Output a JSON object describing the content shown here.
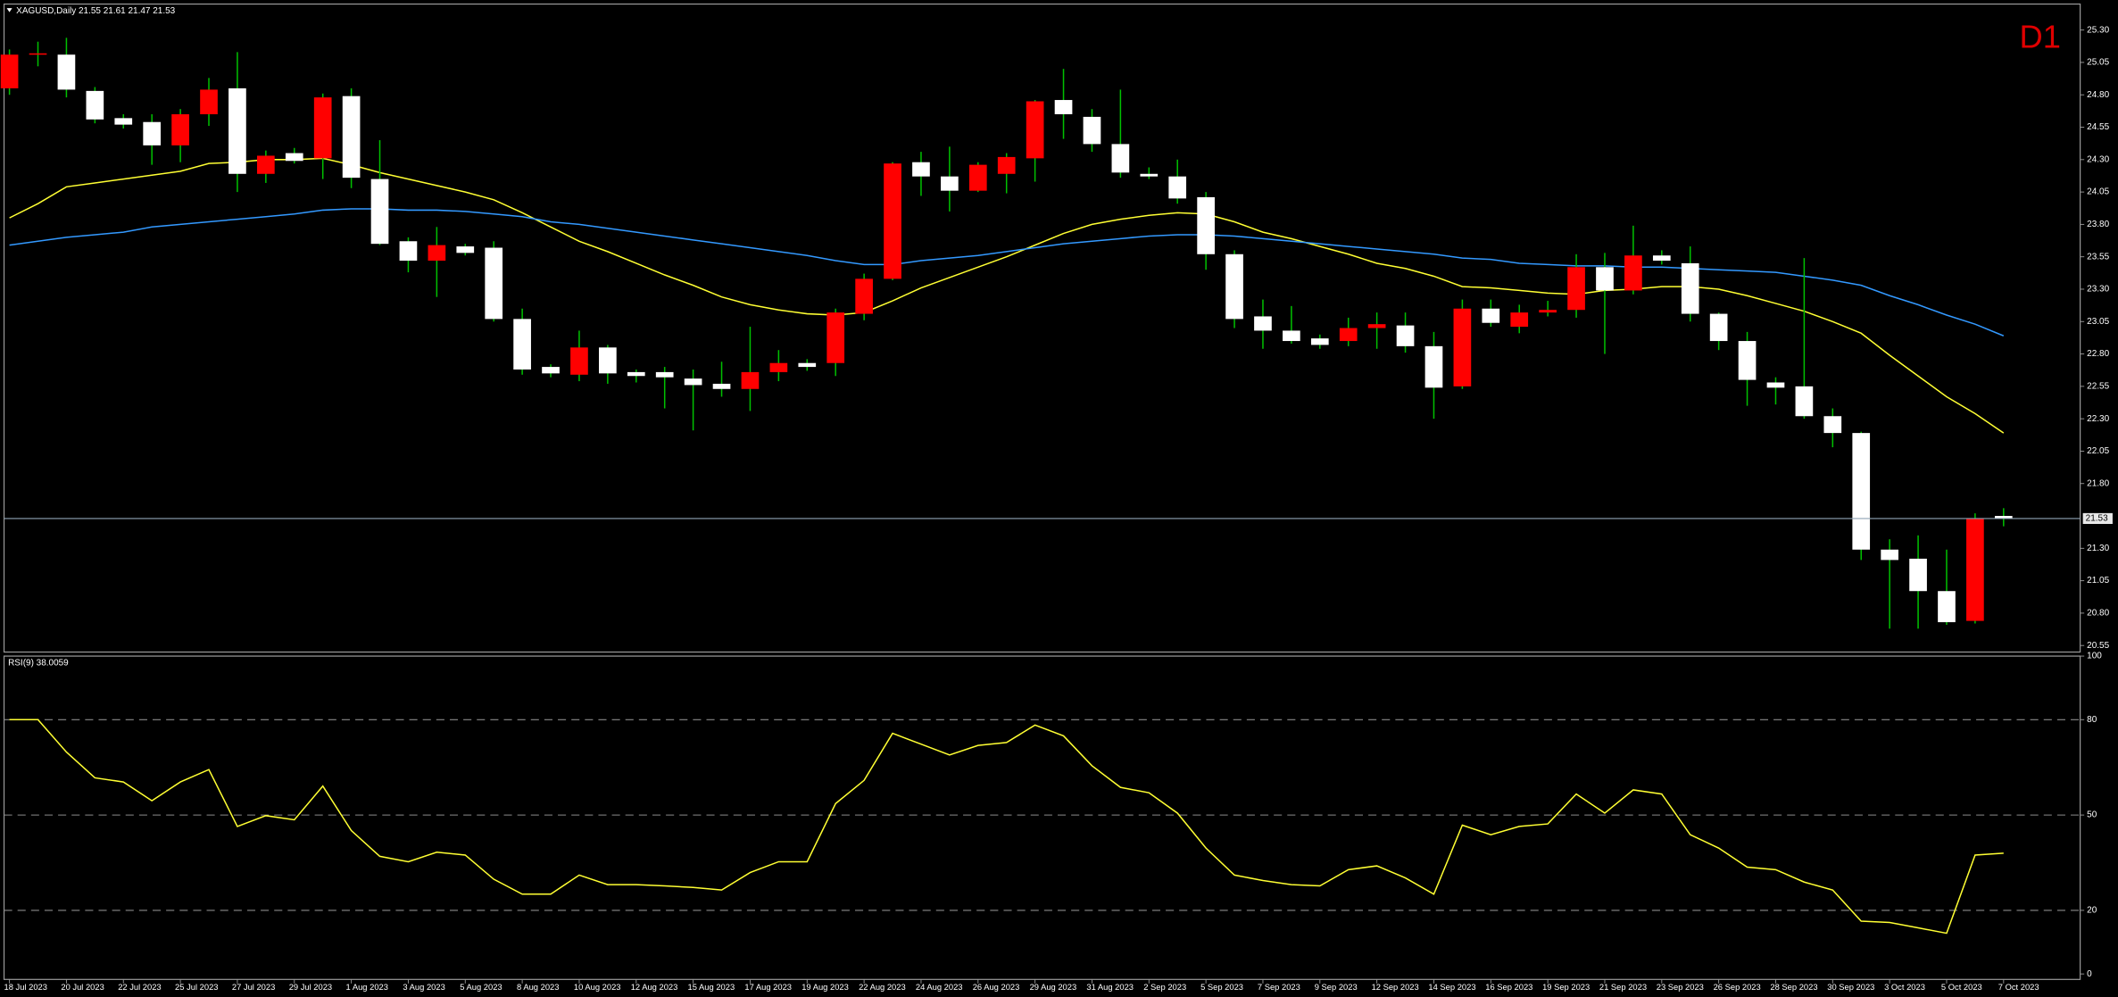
{
  "chart_data": [
    {
      "type": "candlestick",
      "title": "XAGUSD,Daily  21.55 21.61 21.47 21.53",
      "corner_label": "D1",
      "categories": [
        "18 Jul 2023",
        null,
        "20 Jul 2023",
        null,
        "22 Jul 2023",
        null,
        "25 Jul 2023",
        null,
        "27 Jul 2023",
        null,
        "29 Jul 2023",
        null,
        "1 Aug 2023",
        null,
        "3 Aug 2023",
        null,
        "5 Aug 2023",
        null,
        "8 Aug 2023",
        null,
        "10 Aug 2023",
        null,
        "12 Aug 2023",
        null,
        "15 Aug 2023",
        null,
        "17 Aug 2023",
        null,
        "19 Aug 2023",
        null,
        "22 Aug 2023",
        null,
        "24 Aug 2023",
        null,
        "26 Aug 2023",
        null,
        "29 Aug 2023",
        null,
        "31 Aug 2023",
        null,
        "2 Sep 2023",
        null,
        "5 Sep 2023",
        null,
        "7 Sep 2023",
        null,
        "9 Sep 2023",
        null,
        "12 Sep 2023",
        null,
        "14 Sep 2023",
        null,
        "16 Sep 2023",
        null,
        "19 Sep 2023",
        null,
        "21 Sep 2023",
        null,
        "23 Sep 2023",
        null,
        "26 Sep 2023",
        null,
        "28 Sep 2023",
        null,
        "30 Sep 2023",
        null,
        "3 Oct 2023",
        null,
        "5 Oct 2023",
        null,
        "7 Oct 2023"
      ],
      "open": [
        24.85,
        25.11,
        25.11,
        24.83,
        24.62,
        24.59,
        24.41,
        24.65,
        24.85,
        24.19,
        24.35,
        24.31,
        24.79,
        24.15,
        23.67,
        23.52,
        23.63,
        23.62,
        23.07,
        22.7,
        22.64,
        22.85,
        22.66,
        22.66,
        22.61,
        22.57,
        22.53,
        22.66,
        22.73,
        22.73,
        23.11,
        23.38,
        24.28,
        24.17,
        24.06,
        24.19,
        24.31,
        24.76,
        24.63,
        24.42,
        24.19,
        24.17,
        24.01,
        23.57,
        23.09,
        22.98,
        22.92,
        22.9,
        23.0,
        23.02,
        22.86,
        22.55,
        23.15,
        23.01,
        23.12,
        23.14,
        23.47,
        23.29,
        23.56,
        23.5,
        23.11,
        22.9,
        22.58,
        22.55,
        22.32,
        22.19,
        21.29,
        21.22,
        20.97,
        20.74,
        21.55
      ],
      "high": [
        25.15,
        25.21,
        25.24,
        24.86,
        24.65,
        24.65,
        24.69,
        24.93,
        25.13,
        24.37,
        24.39,
        24.81,
        24.85,
        24.45,
        23.7,
        23.78,
        23.65,
        23.67,
        23.15,
        22.72,
        22.98,
        22.87,
        22.68,
        22.7,
        22.68,
        22.74,
        23.01,
        22.83,
        22.76,
        23.15,
        23.42,
        24.28,
        24.36,
        24.4,
        24.28,
        24.35,
        24.76,
        25.0,
        24.69,
        24.84,
        24.24,
        24.3,
        24.05,
        23.6,
        23.22,
        23.17,
        22.95,
        23.08,
        23.12,
        23.12,
        22.97,
        23.22,
        23.22,
        23.18,
        23.21,
        23.57,
        23.58,
        23.79,
        23.6,
        23.63,
        23.12,
        22.97,
        22.62,
        23.54,
        22.38,
        22.2,
        21.37,
        21.4,
        21.29,
        21.57,
        21.61
      ],
      "low": [
        24.8,
        25.02,
        24.78,
        24.58,
        24.54,
        24.26,
        24.28,
        24.56,
        24.05,
        24.12,
        24.27,
        24.15,
        24.08,
        23.64,
        23.43,
        23.24,
        23.56,
        23.05,
        22.64,
        22.62,
        22.59,
        22.57,
        22.58,
        22.38,
        22.21,
        22.47,
        22.36,
        22.59,
        22.67,
        22.63,
        23.06,
        23.37,
        24.02,
        23.9,
        24.05,
        24.04,
        24.13,
        24.46,
        24.36,
        24.16,
        24.15,
        23.96,
        23.45,
        23.0,
        22.84,
        22.88,
        22.84,
        22.86,
        22.84,
        22.81,
        22.3,
        22.53,
        23.01,
        22.96,
        23.09,
        23.08,
        22.8,
        23.26,
        23.49,
        23.05,
        22.83,
        22.4,
        22.41,
        22.3,
        22.08,
        21.21,
        20.68,
        20.68,
        20.71,
        20.72,
        21.47
      ],
      "close": [
        25.11,
        25.12,
        24.84,
        24.61,
        24.57,
        24.41,
        24.65,
        24.84,
        24.19,
        24.33,
        24.29,
        24.78,
        24.16,
        23.65,
        23.52,
        23.64,
        23.58,
        23.07,
        22.68,
        22.65,
        22.85,
        22.65,
        22.63,
        22.62,
        22.56,
        22.53,
        22.66,
        22.73,
        22.7,
        23.12,
        23.38,
        24.27,
        24.17,
        24.06,
        24.26,
        24.32,
        24.75,
        24.65,
        24.42,
        24.2,
        24.17,
        24.0,
        23.57,
        23.07,
        22.98,
        22.9,
        22.87,
        23.0,
        23.03,
        22.86,
        22.54,
        23.15,
        23.04,
        23.12,
        23.14,
        23.47,
        23.29,
        23.56,
        23.52,
        23.11,
        22.9,
        22.6,
        22.54,
        22.32,
        22.19,
        21.29,
        21.21,
        20.97,
        20.73,
        21.53,
        21.53
      ],
      "up_color": "#ff0000",
      "down_color": "#ffffff",
      "wick_color": "#00c000",
      "series": [
        {
          "color": "#ffff33",
          "values": [
            23.85,
            23.96,
            24.09,
            24.12,
            24.15,
            24.18,
            24.21,
            24.27,
            24.28,
            24.3,
            24.3,
            24.31,
            24.26,
            24.2,
            24.15,
            24.1,
            24.05,
            23.99,
            23.89,
            23.78,
            23.67,
            23.59,
            23.5,
            23.41,
            23.33,
            23.24,
            23.18,
            23.14,
            23.11,
            23.1,
            23.12,
            23.21,
            23.31,
            23.39,
            23.47,
            23.55,
            23.64,
            23.73,
            23.8,
            23.84,
            23.87,
            23.89,
            23.88,
            23.82,
            23.74,
            23.69,
            23.63,
            23.57,
            23.5,
            23.46,
            23.4,
            23.32,
            23.31,
            23.29,
            23.27,
            23.26,
            23.29,
            23.3,
            23.32,
            23.32,
            23.3,
            23.25,
            23.19,
            23.13,
            23.05,
            22.96,
            22.79,
            22.63,
            22.47,
            22.34,
            22.19
          ]
        },
        {
          "color": "#3399ff",
          "values": [
            23.64,
            23.67,
            23.7,
            23.72,
            23.74,
            23.78,
            23.8,
            23.82,
            23.84,
            23.86,
            23.88,
            23.91,
            23.92,
            23.92,
            23.91,
            23.91,
            23.9,
            23.88,
            23.86,
            23.82,
            23.8,
            23.77,
            23.74,
            23.71,
            23.68,
            23.65,
            23.62,
            23.59,
            23.56,
            23.52,
            23.49,
            23.49,
            23.52,
            23.54,
            23.56,
            23.59,
            23.62,
            23.65,
            23.67,
            23.69,
            23.71,
            23.72,
            23.72,
            23.71,
            23.69,
            23.67,
            23.65,
            23.63,
            23.61,
            23.59,
            23.57,
            23.54,
            23.53,
            23.5,
            23.49,
            23.48,
            23.48,
            23.47,
            23.47,
            23.46,
            23.45,
            23.44,
            23.43,
            23.4,
            23.37,
            23.33,
            23.25,
            23.18,
            23.1,
            23.03,
            22.94
          ]
        }
      ],
      "current_price": 21.53,
      "ylim": [
        20.51,
        25.49
      ],
      "yticks": [
        {
          "value": 25.3,
          "label": "25.30"
        },
        25.05,
        {
          "value": 24.8,
          "label": "24.80"
        },
        24.55,
        {
          "value": 24.3,
          "label": "24.30"
        },
        24.05,
        {
          "value": 23.8,
          "label": "23.80"
        },
        23.55,
        {
          "value": 23.3,
          "label": "23.30"
        },
        23.05,
        {
          "value": 22.8,
          "label": "22.80"
        },
        22.55,
        {
          "value": 22.3,
          "label": "22.30"
        },
        22.05,
        {
          "value": 21.8,
          "label": "21.80"
        },
        {
          "value": 21.3,
          "label": "21.30"
        },
        21.05,
        {
          "value": 20.8,
          "label": "20.80"
        },
        20.55
      ],
      "grid": false
    },
    {
      "type": "line",
      "title": "RSI(9) 38.0059",
      "series": [
        {
          "color": "#ffff33",
          "values": [
            80.0,
            80.0,
            69.8,
            61.7,
            60.4,
            54.5,
            60.4,
            64.3,
            46.4,
            49.8,
            48.5,
            59.1,
            45.1,
            37.0,
            35.3,
            38.3,
            37.4,
            29.8,
            25.1,
            25.1,
            31.1,
            28.1,
            28.1,
            27.7,
            27.2,
            26.4,
            31.9,
            35.3,
            35.3,
            53.6,
            60.9,
            75.7,
            72.3,
            68.9,
            71.9,
            72.8,
            78.3,
            74.9,
            65.5,
            58.7,
            57.0,
            50.6,
            39.6,
            31.1,
            29.4,
            28.1,
            27.7,
            32.8,
            34.0,
            30.2,
            25.1,
            46.8,
            43.8,
            46.4,
            47.2,
            56.6,
            50.6,
            57.9,
            56.6,
            43.8,
            39.6,
            33.6,
            32.8,
            28.9,
            26.4,
            16.6,
            16.2,
            14.5,
            12.8,
            37.4,
            38.0
          ]
        }
      ],
      "levels": [
        80,
        50,
        20
      ],
      "ylim": [
        -1.3,
        100
      ],
      "yticks": [
        100,
        80,
        50,
        20,
        0
      ],
      "grid": false
    }
  ]
}
